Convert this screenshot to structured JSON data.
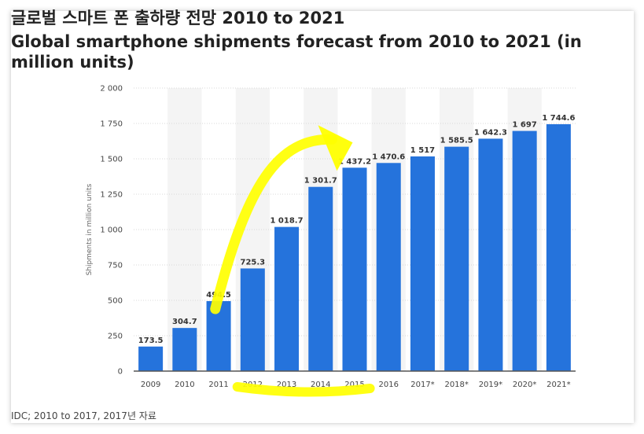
{
  "header": {
    "title": "글로벌 스마트 폰 출하량 전망 2010 to 2021",
    "subtitle": "Global smartphone shipments forecast from 2010 to 2021 (in million units)"
  },
  "footer": {
    "source": "IDC; 2010 to 2017, 2017년 자료"
  },
  "colors": {
    "bar": "#2573dc",
    "band": "#f4f4f4",
    "highlight": "#ffff00"
  },
  "chart_data": {
    "type": "bar",
    "title": "글로벌 스마트 폰 출하량 전망 2010 to 2021",
    "subtitle": "Global smartphone shipments forecast from 2010 to 2021 (in million units)",
    "xlabel": "",
    "ylabel": "Shipments in million units",
    "ylim": [
      0,
      2000
    ],
    "yticks": [
      0,
      250,
      500,
      750,
      1000,
      1250,
      1500,
      1750,
      2000
    ],
    "ytick_labels": [
      "0",
      "250",
      "500",
      "750",
      "1 000",
      "1 250",
      "1 500",
      "1 750",
      "2 000"
    ],
    "grid": true,
    "categories": [
      "2009",
      "2010",
      "2011",
      "2012",
      "2013",
      "2014",
      "2015",
      "2016",
      "2017*",
      "2018*",
      "2019*",
      "2020*",
      "2021*"
    ],
    "values": [
      173.5,
      304.7,
      494.5,
      725.3,
      1018.7,
      1301.7,
      1437.2,
      1470.6,
      1517,
      1585.5,
      1642.3,
      1697,
      1744.6
    ],
    "value_labels": [
      "173.5",
      "304.7",
      "494.5",
      "725.3",
      "1 018.7",
      "1 301.7",
      "1 437.2",
      "1 470.6",
      "1 517",
      "1 585.5",
      "1 642.3",
      "1 697",
      "1 744.6"
    ],
    "highlighted_categories": [
      "2012",
      "2013",
      "2014",
      "2015"
    ]
  }
}
